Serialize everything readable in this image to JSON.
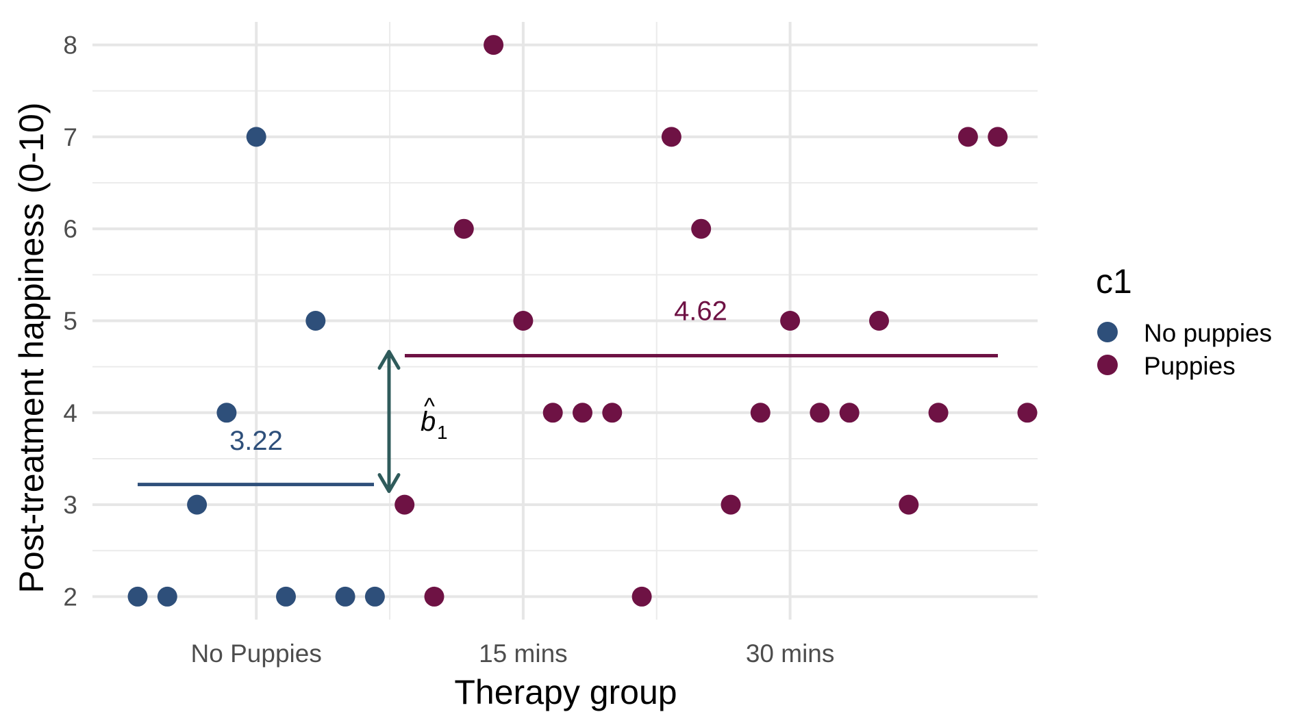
{
  "chart_data": {
    "type": "scatter",
    "xlabel": "Therapy group",
    "ylabel": "Post-treatment happiness (0-10)",
    "x_categories": [
      "No Puppies",
      "15 mins",
      "30 mins"
    ],
    "yticks": [
      2,
      3,
      4,
      5,
      6,
      7,
      8
    ],
    "ylim": [
      1.75,
      8.25
    ],
    "grid": true,
    "legend": {
      "title": "c1",
      "position": "right",
      "entries": [
        {
          "label": "No puppies",
          "color": "#2e4f7a"
        },
        {
          "label": "Puppies",
          "color": "#6e1244"
        }
      ]
    },
    "series": [
      {
        "name": "No puppies",
        "color": "#2e4f7a",
        "x": [
          1,
          2,
          3,
          4,
          5,
          6,
          7,
          8,
          9
        ],
        "y": [
          2,
          2,
          3,
          4,
          7,
          2,
          5,
          2,
          2
        ]
      },
      {
        "name": "Puppies",
        "color": "#6e1244",
        "x": [
          10,
          11,
          12,
          13,
          14,
          15,
          16,
          17,
          18,
          19,
          20,
          21,
          22,
          23,
          24,
          25,
          26,
          27,
          28,
          29,
          30,
          31
        ],
        "y": [
          3,
          2,
          6,
          8,
          5,
          4,
          4,
          4,
          2,
          7,
          6,
          3,
          4,
          5,
          4,
          4,
          5,
          3,
          4,
          7,
          7,
          4
        ]
      }
    ],
    "group_means": [
      {
        "label": "3.22",
        "value": 3.22,
        "x_start": 1,
        "x_end": 9,
        "color": "#2e4f7a"
      },
      {
        "label": "4.62",
        "value": 4.62,
        "x_start": 10,
        "x_end": 30,
        "color": "#6e1244"
      }
    ],
    "annotation": {
      "symbol": "b",
      "hat": "^",
      "subscript": "1",
      "from": 3.22,
      "to": 4.62,
      "color": "#2f5b5b"
    }
  }
}
